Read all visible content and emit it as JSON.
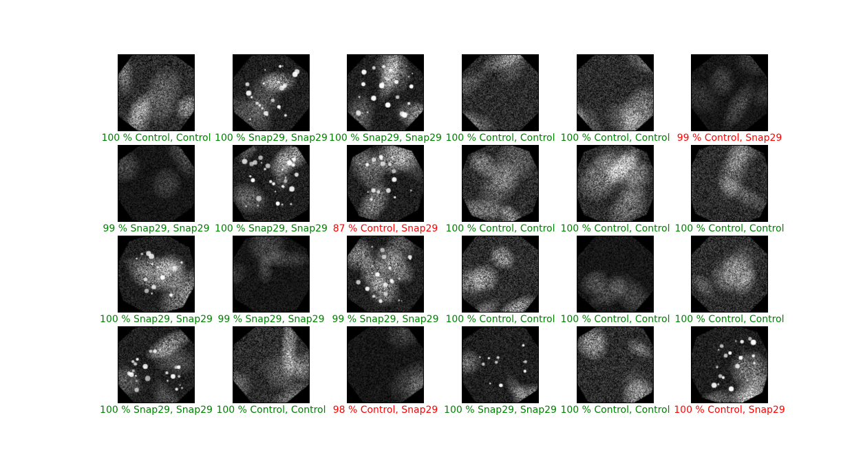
{
  "colors": {
    "correct": "#008000",
    "incorrect": "#ff0000"
  },
  "tiles": [
    {
      "label": "100 % Control, Control",
      "correct": true,
      "pattern": "diffuse"
    },
    {
      "label": "100 % Snap29, Snap29",
      "correct": true,
      "pattern": "puncta"
    },
    {
      "label": "100 % Snap29, Snap29",
      "correct": true,
      "pattern": "puncta"
    },
    {
      "label": "100 % Control, Control",
      "correct": true,
      "pattern": "diffuse"
    },
    {
      "label": "100 % Control, Control",
      "correct": true,
      "pattern": "diffuse"
    },
    {
      "label": "99 % Control, Snap29",
      "correct": false,
      "pattern": "dim"
    },
    {
      "label": "99 % Snap29, Snap29",
      "correct": true,
      "pattern": "dim"
    },
    {
      "label": "100 % Snap29, Snap29",
      "correct": true,
      "pattern": "puncta"
    },
    {
      "label": "87 % Control, Snap29",
      "correct": false,
      "pattern": "puncta"
    },
    {
      "label": "100 % Control, Control",
      "correct": true,
      "pattern": "diffuse"
    },
    {
      "label": "100 % Control, Control",
      "correct": true,
      "pattern": "diffuse"
    },
    {
      "label": "100 % Control, Control",
      "correct": true,
      "pattern": "diffuse"
    },
    {
      "label": "100 % Snap29, Snap29",
      "correct": true,
      "pattern": "puncta"
    },
    {
      "label": "99 % Snap29, Snap29",
      "correct": true,
      "pattern": "dim"
    },
    {
      "label": "99 % Snap29, Snap29",
      "correct": true,
      "pattern": "puncta"
    },
    {
      "label": "100 % Control, Control",
      "correct": true,
      "pattern": "diffuse"
    },
    {
      "label": "100 % Control, Control",
      "correct": true,
      "pattern": "dim"
    },
    {
      "label": "100 % Control, Control",
      "correct": true,
      "pattern": "diffuse"
    },
    {
      "label": "100 % Snap29, Snap29",
      "correct": true,
      "pattern": "puncta"
    },
    {
      "label": "100 % Control, Control",
      "correct": true,
      "pattern": "diffuse"
    },
    {
      "label": "98 % Control, Snap29",
      "correct": false,
      "pattern": "dim"
    },
    {
      "label": "100 % Snap29, Snap29",
      "correct": true,
      "pattern": "puncta"
    },
    {
      "label": "100 % Control, Control",
      "correct": true,
      "pattern": "diffuse"
    },
    {
      "label": "100 % Control, Snap29",
      "correct": false,
      "pattern": "puncta"
    }
  ]
}
